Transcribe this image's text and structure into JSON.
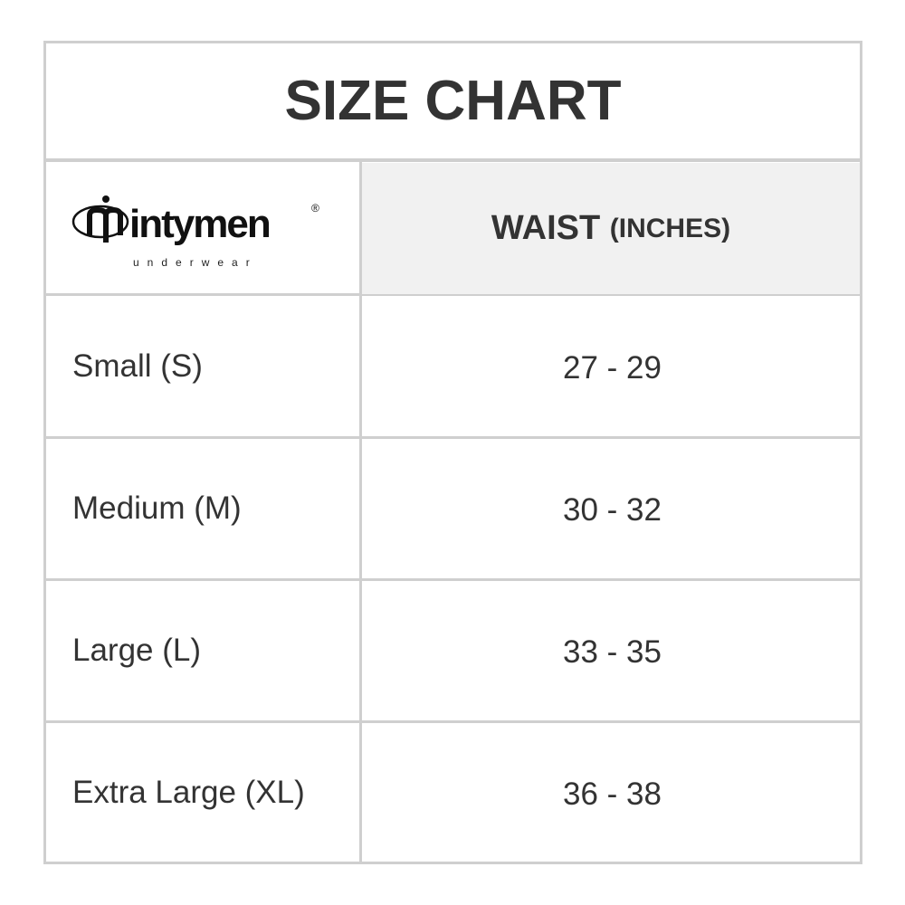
{
  "title": "SIZE CHART",
  "logo": {
    "brand": "intymen",
    "tagline": "underwear",
    "mark": "®"
  },
  "header": {
    "waist": "WAIST",
    "unit": "(INCHES)"
  },
  "rows": [
    {
      "size": "Small (S)",
      "waist": "27 - 29"
    },
    {
      "size": "Medium (M)",
      "waist": "30 - 32"
    },
    {
      "size": "Large (L)",
      "waist": "33 - 35"
    },
    {
      "size": "Extra Large (XL)",
      "waist": "36 - 38"
    }
  ],
  "colors": {
    "border": "#cfcfcf",
    "header_bg": "#f1f1f1",
    "text": "#333333"
  }
}
